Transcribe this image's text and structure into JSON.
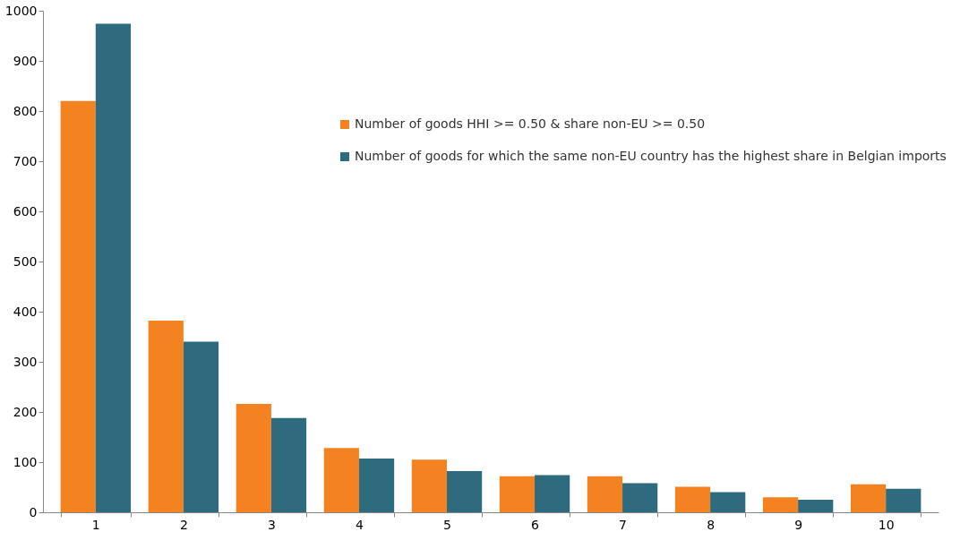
{
  "chart_data": {
    "type": "bar",
    "categories": [
      "1",
      "2",
      "3",
      "4",
      "5",
      "6",
      "7",
      "8",
      "9",
      "10"
    ],
    "series": [
      {
        "name": "Number of goods HHI >= 0.50 & share non-EU >= 0.50",
        "color": "#f58220",
        "values": [
          820,
          382,
          216,
          128,
          105,
          72,
          72,
          51,
          30,
          56
        ]
      },
      {
        "name": "Number of goods for which the same non-EU country has the highest share in Belgian imports",
        "color": "#2e6b7e",
        "values": [
          974,
          340,
          188,
          107,
          82,
          74,
          58,
          40,
          25,
          47
        ]
      }
    ],
    "ylim": [
      0,
      1000
    ],
    "yticks": [
      0,
      100,
      200,
      300,
      400,
      500,
      600,
      700,
      800,
      900,
      1000
    ],
    "grid": false,
    "legend": "top right"
  }
}
